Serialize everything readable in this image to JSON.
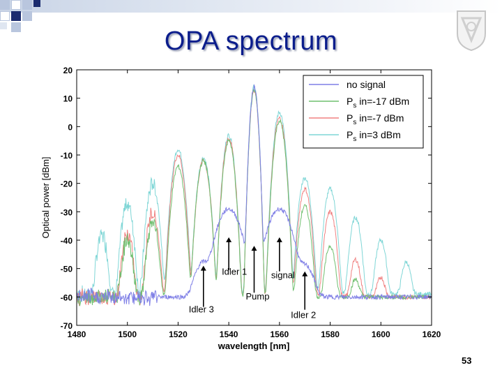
{
  "slide": {
    "title": "OPA spectrum",
    "page_number": "53",
    "colors": {
      "title": "#0b1d8c",
      "bar": "#c9d4e6",
      "square_dark": "#1c2c6f",
      "square_light": "#b9c6de"
    }
  },
  "chart_data": {
    "type": "line",
    "title": "",
    "xlabel": "wavelength [nm]",
    "ylabel": "Optical power [dBm]",
    "xlim": [
      1480,
      1620
    ],
    "ylim": [
      -70,
      20
    ],
    "xticks": [
      1480,
      1500,
      1520,
      1540,
      1560,
      1580,
      1600,
      1620
    ],
    "yticks": [
      20,
      10,
      0,
      -10,
      -20,
      -30,
      -40,
      -50,
      -60,
      -70
    ],
    "xtick_labels": [
      "1480",
      "1500",
      "1520",
      "1540",
      "1560",
      "1580",
      "1600",
      "1620"
    ],
    "ytick_labels": [
      "20",
      "10",
      "0",
      "-10",
      "-20",
      "-30",
      "-40",
      "-50",
      "-60",
      "-70"
    ],
    "grid": false,
    "legend_position": "top-right",
    "floor_dbm": -59,
    "series": [
      {
        "name": "no signal",
        "label_main": "no signal",
        "label_sub": "",
        "label_rest": "",
        "color": "#7f7fe6",
        "floor_dbm": -60,
        "peaks": [
          {
            "x": 1530,
            "y": -48,
            "w": 2.2
          },
          {
            "x": 1540,
            "y": -29,
            "w": 2.6
          },
          {
            "x": 1550,
            "y": 14,
            "w": 0.7
          },
          {
            "x": 1560,
            "y": -29,
            "w": 2.6
          },
          {
            "x": 1570,
            "y": -49,
            "w": 2.2
          }
        ]
      },
      {
        "name": "Ps in=-17 dBm",
        "label_main": "P",
        "label_sub": "s",
        "label_rest": " in=-17 dBm",
        "color": "#6fbf6f",
        "floor_dbm": -60,
        "peaks": [
          {
            "x": 1500,
            "y": -40,
            "w": 1.1
          },
          {
            "x": 1510,
            "y": -34,
            "w": 1.1
          },
          {
            "x": 1520,
            "y": -14,
            "w": 1.1
          },
          {
            "x": 1530,
            "y": -12,
            "w": 1.1
          },
          {
            "x": 1540,
            "y": -5,
            "w": 1.0
          },
          {
            "x": 1550,
            "y": 13,
            "w": 0.7
          },
          {
            "x": 1560,
            "y": 2,
            "w": 1.0
          },
          {
            "x": 1570,
            "y": -28,
            "w": 1.1
          },
          {
            "x": 1580,
            "y": -42,
            "w": 1.1
          },
          {
            "x": 1590,
            "y": -55,
            "w": 1.1
          }
        ]
      },
      {
        "name": "Ps in=-7 dBm",
        "label_main": "P",
        "label_sub": "s",
        "label_rest": " in=-7 dBm",
        "color": "#f08080",
        "floor_dbm": -60,
        "peaks": [
          {
            "x": 1500,
            "y": -38,
            "w": 1.1
          },
          {
            "x": 1510,
            "y": -30,
            "w": 1.1
          },
          {
            "x": 1520,
            "y": -10,
            "w": 1.1
          },
          {
            "x": 1530,
            "y": -12,
            "w": 1.1
          },
          {
            "x": 1540,
            "y": -4,
            "w": 1.0
          },
          {
            "x": 1550,
            "y": 13,
            "w": 0.7
          },
          {
            "x": 1560,
            "y": 3,
            "w": 1.0
          },
          {
            "x": 1570,
            "y": -22,
            "w": 1.1
          },
          {
            "x": 1580,
            "y": -30,
            "w": 1.1
          },
          {
            "x": 1590,
            "y": -47,
            "w": 1.1
          },
          {
            "x": 1600,
            "y": -54,
            "w": 1.1
          }
        ]
      },
      {
        "name": "Ps in=3 dBm",
        "label_main": "P",
        "label_sub": "s",
        "label_rest": " in=3 dBm",
        "color": "#7fd6d6",
        "floor_dbm": -59,
        "peaks": [
          {
            "x": 1490,
            "y": -38,
            "w": 1.1
          },
          {
            "x": 1500,
            "y": -27,
            "w": 1.1
          },
          {
            "x": 1510,
            "y": -20,
            "w": 1.1
          },
          {
            "x": 1520,
            "y": -8,
            "w": 1.1
          },
          {
            "x": 1530,
            "y": -11,
            "w": 1.1
          },
          {
            "x": 1540,
            "y": -3,
            "w": 1.0
          },
          {
            "x": 1550,
            "y": 14,
            "w": 0.7
          },
          {
            "x": 1560,
            "y": 5,
            "w": 1.0
          },
          {
            "x": 1570,
            "y": -18,
            "w": 1.1
          },
          {
            "x": 1580,
            "y": -22,
            "w": 1.1
          },
          {
            "x": 1590,
            "y": -32,
            "w": 1.1
          },
          {
            "x": 1600,
            "y": -40,
            "w": 1.1
          },
          {
            "x": 1610,
            "y": -48,
            "w": 1.1
          }
        ]
      }
    ],
    "annotations": [
      {
        "label": "Idler 3",
        "x": 1530,
        "arrow_tip_y": -49,
        "arrow_base_y": -63.5
      },
      {
        "label": "Idler 1",
        "x": 1540,
        "arrow_tip_y": -39,
        "arrow_base_y": -50.5
      },
      {
        "label": "Pump",
        "x": 1550,
        "arrow_tip_y": -42,
        "arrow_base_y": -58.5
      },
      {
        "label": "signal",
        "x": 1560,
        "arrow_tip_y": -39,
        "arrow_base_y": -51
      },
      {
        "label": "Idler 2",
        "x": 1570,
        "arrow_tip_y": -51,
        "arrow_base_y": -64.5
      }
    ]
  }
}
